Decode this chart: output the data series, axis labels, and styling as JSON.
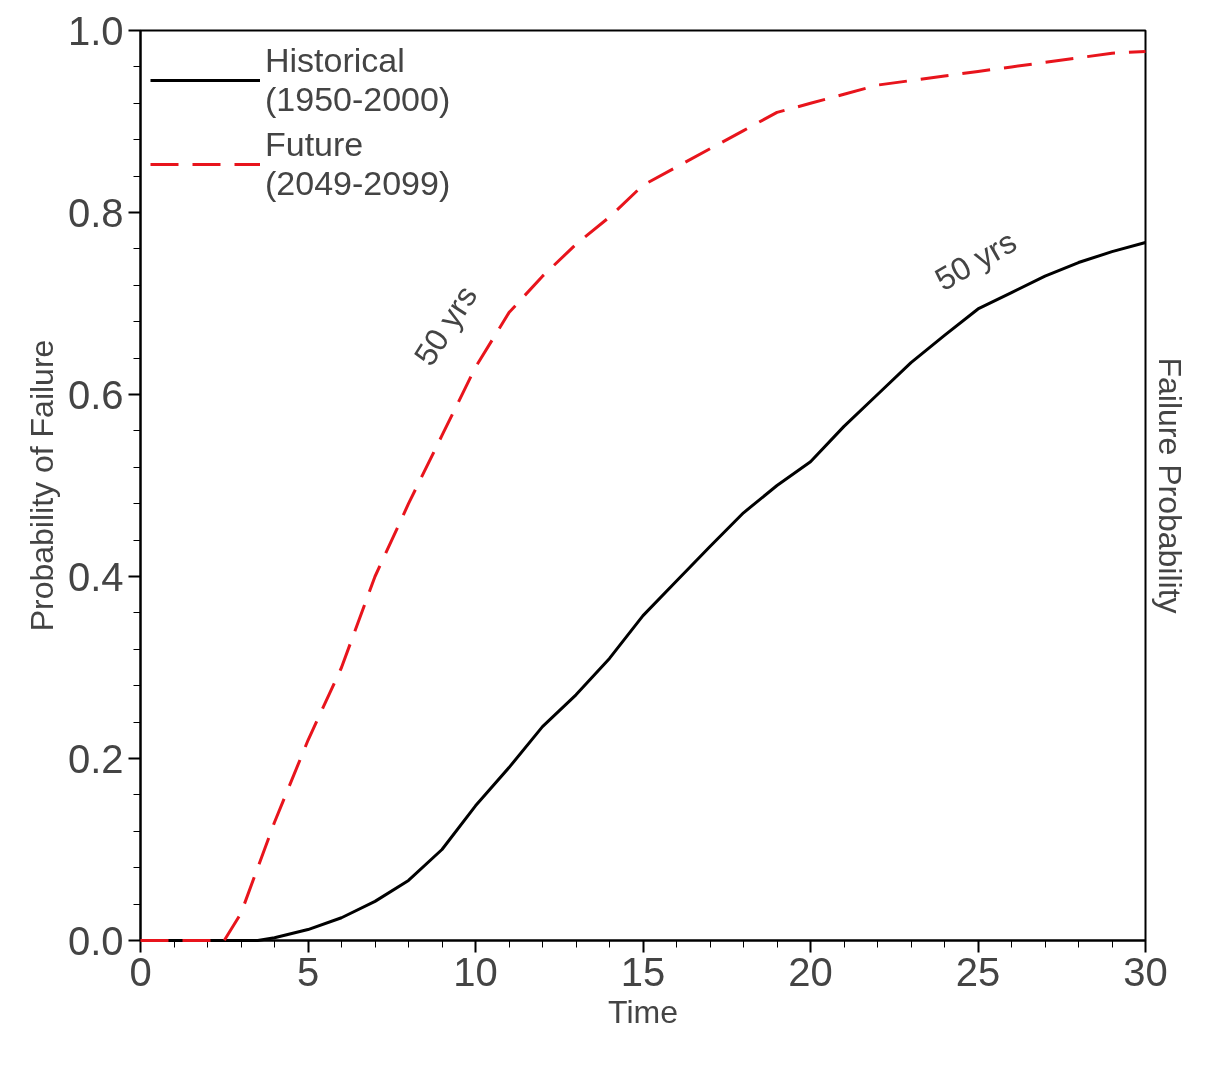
{
  "chart_data": {
    "type": "line",
    "xlabel": "Time",
    "ylabel": "Probability of Failure",
    "y2label": "Failure Probability",
    "xlim": [
      0,
      30
    ],
    "ylim": [
      0,
      1.0
    ],
    "xticks": [
      0,
      5,
      10,
      15,
      20,
      25,
      30
    ],
    "yticks": [
      {
        "value": 0,
        "label": "0.0"
      },
      0.2,
      0.4,
      0.6,
      0.8,
      {
        "value": 1.0,
        "label": "1.0"
      }
    ],
    "grid": false,
    "legend": "top left",
    "marker": "none",
    "series": [
      {
        "name": "Historical\n(1950-2000)",
        "color": "#000000",
        "line_style": "solid",
        "x": [
          0,
          2,
          3.5,
          4,
          5,
          6,
          7,
          8,
          9,
          10,
          11,
          12,
          13,
          14,
          15,
          16,
          17,
          18,
          19,
          20,
          21,
          22,
          23,
          24,
          25,
          26,
          27,
          28,
          29,
          30
        ],
        "values": [
          0,
          0,
          0,
          0.003,
          0.012,
          0.025,
          0.043,
          0.066,
          0.1,
          0.148,
          0.19,
          0.235,
          0.27,
          0.31,
          0.357,
          0.395,
          0.433,
          0.47,
          0.5,
          0.526,
          0.565,
          0.6,
          0.635,
          0.665,
          0.694,
          0.712,
          0.73,
          0.745,
          0.757,
          0.767
        ]
      },
      {
        "name": "Future\n(2049-2099)",
        "color": "#e8141c",
        "line_style": "dashed",
        "x": [
          0,
          1,
          2,
          2.5,
          3,
          3.5,
          4,
          5,
          6,
          7,
          8,
          9,
          10,
          11,
          12,
          13,
          14,
          15,
          16,
          17,
          18,
          19,
          20,
          21,
          22,
          23,
          24,
          25,
          26,
          27,
          28,
          29,
          30
        ],
        "values": [
          0,
          0,
          0,
          0,
          0.03,
          0.08,
          0.13,
          0.22,
          0.3,
          0.4,
          0.48,
          0.555,
          0.63,
          0.69,
          0.73,
          0.765,
          0.795,
          0.83,
          0.85,
          0.87,
          0.89,
          0.91,
          0.92,
          0.93,
          0.94,
          0.945,
          0.95,
          0.955,
          0.96,
          0.965,
          0.97,
          0.975,
          0.977
        ]
      }
    ],
    "annotations": [
      "50 yrs",
      "50 yrs"
    ]
  }
}
